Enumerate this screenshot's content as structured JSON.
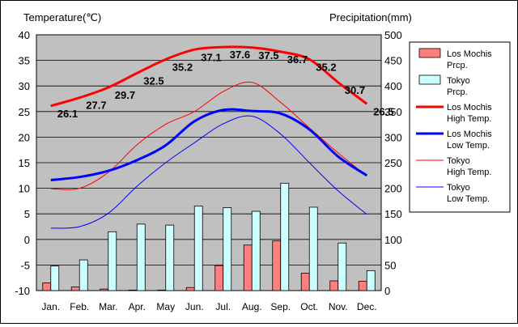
{
  "chart_data": {
    "type": "bar+line",
    "left_axis_title": "Temperature(℃)",
    "right_axis_title": "Precipitation(mm)",
    "categories": [
      "Jan.",
      "Feb.",
      "Mar.",
      "Apr.",
      "May",
      "Jun.",
      "Jul.",
      "Aug.",
      "Sep.",
      "Oct.",
      "Nov.",
      "Dec."
    ],
    "ylim_left": [
      -10,
      40
    ],
    "yticks_left": [
      -10,
      -5,
      0,
      5,
      10,
      15,
      20,
      25,
      30,
      35,
      40
    ],
    "ylim_right": [
      0,
      500
    ],
    "yticks_right": [
      0,
      50,
      100,
      150,
      200,
      250,
      300,
      350,
      400,
      450,
      500
    ],
    "grid": true,
    "legend_position": "right",
    "bar_series": [
      {
        "name": "Los Mochis\nPrcp.",
        "color": "#ff7f7f",
        "values": [
          15,
          7,
          3,
          1,
          1,
          6,
          49,
          89,
          97,
          34,
          19,
          18
        ]
      },
      {
        "name": "Tokyo\nPrcp.",
        "color": "#ccffff",
        "values": [
          48,
          60,
          115,
          130,
          128,
          165,
          162,
          155,
          210,
          163,
          93,
          39
        ]
      }
    ],
    "line_series": [
      {
        "name": "Los Mochis\nHigh Temp.",
        "color": "#ff0000",
        "width": 3,
        "values": [
          26.1,
          27.7,
          29.7,
          32.5,
          35.2,
          37.1,
          37.6,
          37.5,
          36.7,
          35.2,
          30.7,
          26.5
        ],
        "labels": [
          "26.1",
          "27.7",
          "29.7",
          "32.5",
          "35.2",
          "37.1",
          "37.6",
          "37.5",
          "36.7",
          "35.2",
          "30.7",
          "26.5"
        ]
      },
      {
        "name": "Los Mochis\nLow Temp.",
        "color": "#0000ff",
        "width": 3,
        "values": [
          11.6,
          12.2,
          13.4,
          15.5,
          18.4,
          23.1,
          25.3,
          25.1,
          24.6,
          21.5,
          16.2,
          12.5
        ]
      },
      {
        "name": "Tokyo\nHigh Temp.",
        "color": "#ff0000",
        "width": 1,
        "values": [
          9.9,
          10.0,
          13.1,
          18.5,
          22.5,
          25.0,
          28.9,
          30.7,
          26.8,
          21.8,
          16.9,
          12.4
        ]
      },
      {
        "name": "Tokyo\nLow Temp.",
        "color": "#0000ff",
        "width": 1,
        "values": [
          2.2,
          2.5,
          5.1,
          10.4,
          15.0,
          18.9,
          22.6,
          24.1,
          20.6,
          15.0,
          9.5,
          4.9
        ]
      }
    ]
  }
}
